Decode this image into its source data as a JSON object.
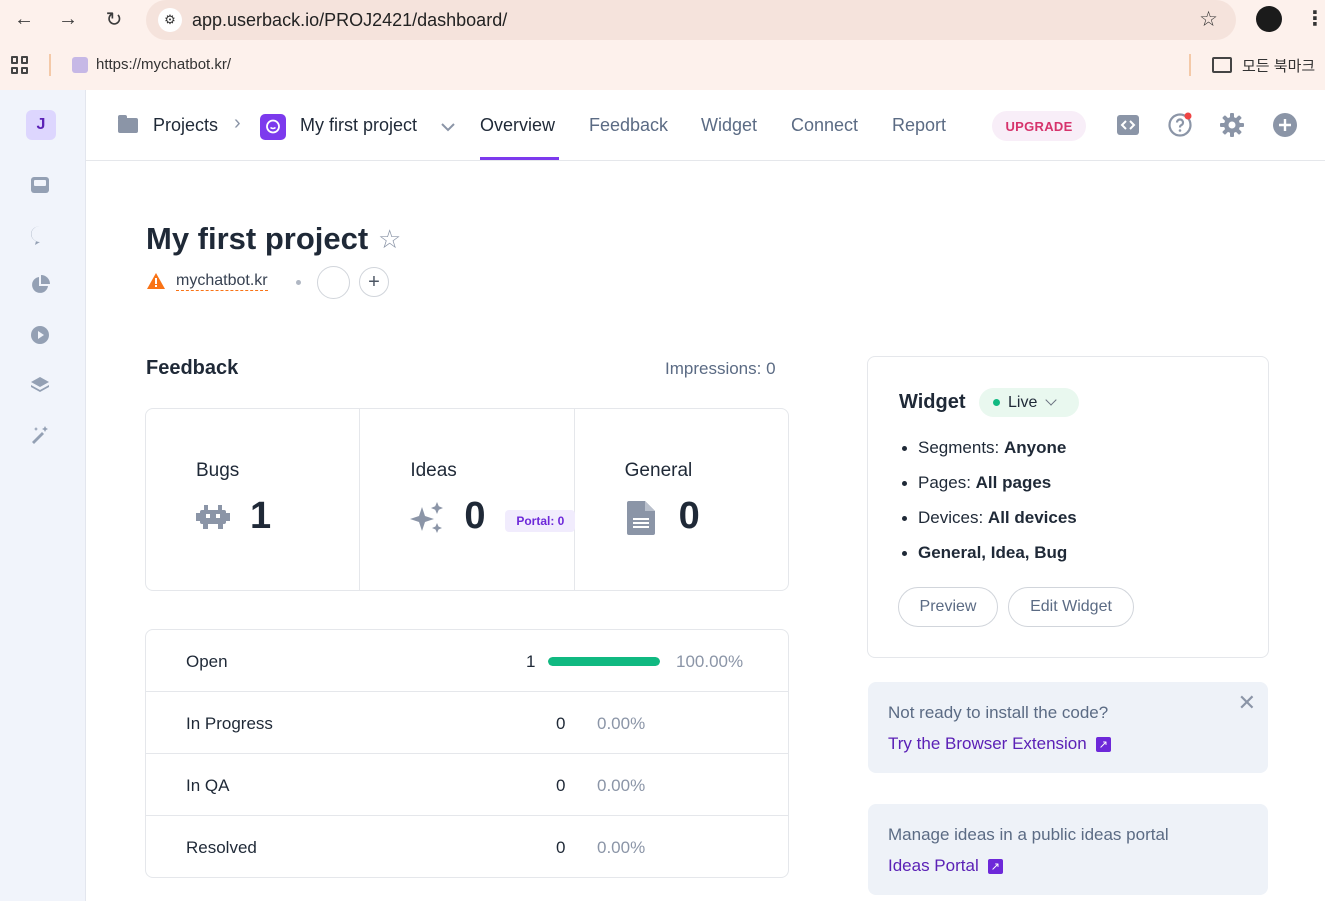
{
  "browser": {
    "url": "app.userback.io/PROJ2421/dashboard/",
    "bookmark_url": "https://mychatbot.kr/",
    "all_bookmarks": "모든 북마크"
  },
  "sidebar": {
    "badge": "J",
    "icons": [
      "inbox-icon",
      "chat-icon",
      "pie-chart-icon",
      "play-icon",
      "layers-icon",
      "magic-wand-icon"
    ]
  },
  "header": {
    "crumb_projects": "Projects",
    "crumb_project": "My first project",
    "tabs": [
      "Overview",
      "Feedback",
      "Widget",
      "Connect",
      "Report"
    ],
    "active_tab": "Overview",
    "upgrade": "UPGRADE"
  },
  "project": {
    "title": "My first project",
    "site": "mychatbot.kr"
  },
  "feedback": {
    "title": "Feedback",
    "impressions": "Impressions: 0",
    "cards": [
      {
        "label": "Bugs",
        "value": "1",
        "icon": "bug-icon"
      },
      {
        "label": "Ideas",
        "value": "0",
        "icon": "sparkles-icon",
        "badge": "Portal: 0"
      },
      {
        "label": "General",
        "value": "0",
        "icon": "document-icon"
      }
    ],
    "statuses": [
      {
        "name": "Open",
        "count": "1",
        "percent": "100.00%",
        "fraction": 1.0
      },
      {
        "name": "In Progress",
        "count": "0",
        "percent": "0.00%"
      },
      {
        "name": "In QA",
        "count": "0",
        "percent": "0.00%"
      },
      {
        "name": "Resolved",
        "count": "0",
        "percent": "0.00%"
      }
    ]
  },
  "widget": {
    "title": "Widget",
    "status": "Live",
    "items": [
      {
        "label": "Segments: ",
        "value": "Anyone"
      },
      {
        "label": "Pages: ",
        "value": "All pages"
      },
      {
        "label": "Devices: ",
        "value": "All devices"
      },
      {
        "label": "",
        "value": "General, Idea, Bug"
      }
    ],
    "preview_btn": "Preview",
    "edit_btn": "Edit Widget"
  },
  "promos": [
    {
      "text": "Not ready to install the code?",
      "link": "Try the Browser Extension"
    },
    {
      "text": "Manage ideas in a public ideas portal",
      "link": "Ideas Portal"
    }
  ],
  "colors": {
    "accent": "#7c3aed",
    "progress": "#10b981",
    "upgrade": "#d6336c",
    "warning": "#f97316"
  }
}
